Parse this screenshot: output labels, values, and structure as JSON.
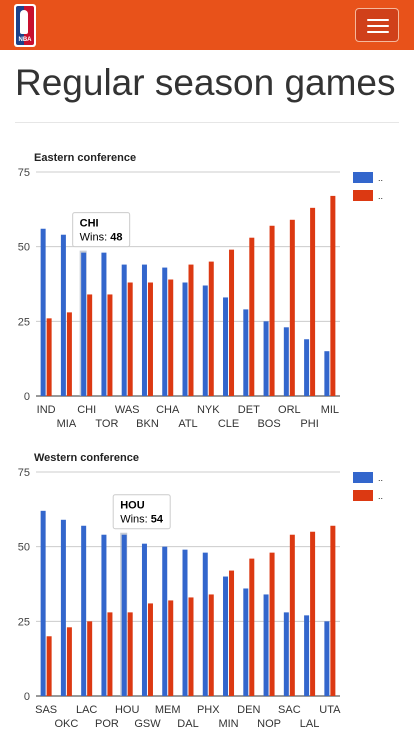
{
  "header": {
    "logo_text": "NBA",
    "menu_icon": "hamburger-icon"
  },
  "page": {
    "title": "Regular season games"
  },
  "colors": {
    "navbar": "#e8521a",
    "series_blue": "#3366cc",
    "series_red": "#dc3912",
    "highlight": "#b0b8c4"
  },
  "chart_data": [
    {
      "type": "bar",
      "title": "Eastern conference",
      "categories": [
        "IND",
        "MIA",
        "CHI",
        "TOR",
        "WAS",
        "BKN",
        "CHA",
        "ATL",
        "NYK",
        "CLE",
        "DET",
        "BOS",
        "ORL",
        "PHI",
        "MIL"
      ],
      "series": [
        {
          "name": "..",
          "values": [
            56,
            54,
            48,
            48,
            44,
            44,
            43,
            38,
            37,
            33,
            29,
            25,
            23,
            19,
            15
          ]
        },
        {
          "name": "..",
          "values": [
            26,
            28,
            34,
            34,
            38,
            38,
            39,
            44,
            45,
            49,
            53,
            57,
            59,
            63,
            67
          ]
        }
      ],
      "ylim": [
        0,
        75
      ],
      "yticks": [
        0,
        25,
        50,
        75
      ],
      "grid": true,
      "legend": "right",
      "tooltip": {
        "category": "CHI",
        "label": "Wins:",
        "value": "48",
        "index": 2
      }
    },
    {
      "type": "bar",
      "title": "Western conference",
      "categories": [
        "SAS",
        "OKC",
        "LAC",
        "POR",
        "HOU",
        "GSW",
        "MEM",
        "DAL",
        "PHX",
        "MIN",
        "DEN",
        "NOP",
        "SAC",
        "LAL",
        "UTA"
      ],
      "series": [
        {
          "name": "..",
          "values": [
            62,
            59,
            57,
            54,
            54,
            51,
            50,
            49,
            48,
            40,
            36,
            34,
            28,
            27,
            25
          ]
        },
        {
          "name": "..",
          "values": [
            20,
            23,
            25,
            28,
            28,
            31,
            32,
            33,
            34,
            42,
            46,
            48,
            54,
            55,
            57
          ]
        }
      ],
      "ylim": [
        0,
        75
      ],
      "yticks": [
        0,
        25,
        50,
        75
      ],
      "grid": true,
      "legend": "right",
      "tooltip": {
        "category": "HOU",
        "label": "Wins:",
        "value": "54",
        "index": 4
      }
    }
  ]
}
